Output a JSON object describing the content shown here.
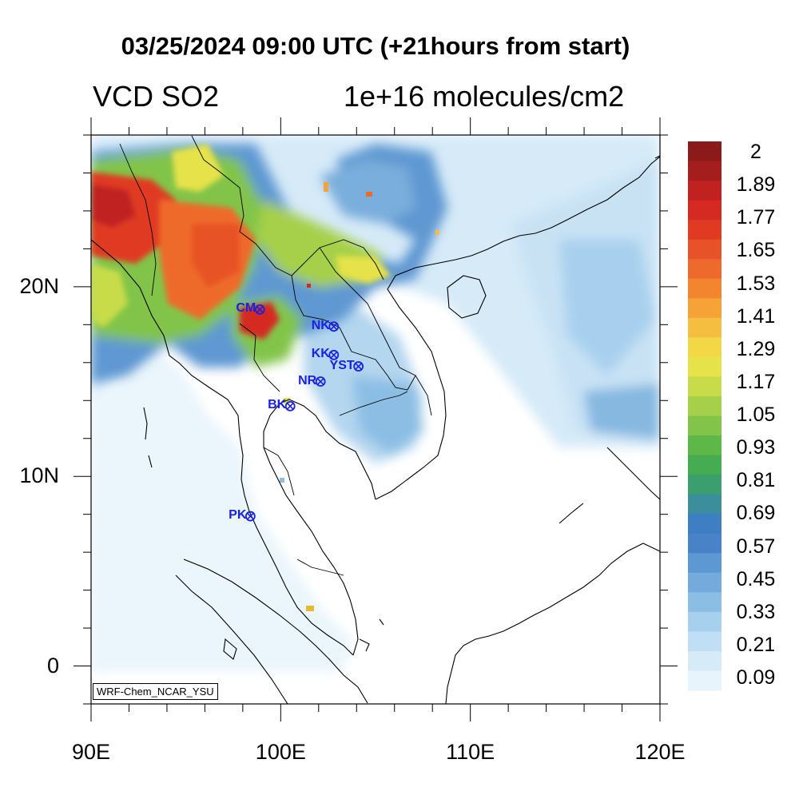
{
  "title": "03/25/2024 09:00 UTC (+21hours from start)",
  "variable": "VCD SO2",
  "units": "1e+16 molecules/cm2",
  "credit": "WRF-Chem_NCAR_YSU",
  "lon_ticks": [
    {
      "lon": 90,
      "label": "90E"
    },
    {
      "lon": 100,
      "label": "100E"
    },
    {
      "lon": 110,
      "label": "110E"
    },
    {
      "lon": 120,
      "label": "120E"
    }
  ],
  "lat_ticks": [
    {
      "lat": 20,
      "label": "20N"
    },
    {
      "lat": 10,
      "label": "10N"
    },
    {
      "lat": 0,
      "label": "0"
    }
  ],
  "colorbar": {
    "labels": [
      "2",
      "1.89",
      "1.77",
      "1.65",
      "1.53",
      "1.41",
      "1.29",
      "1.17",
      "1.05",
      "0.93",
      "0.81",
      "0.69",
      "0.57",
      "0.45",
      "0.33",
      "0.21",
      "0.09"
    ],
    "colors": [
      "#8b1a1a",
      "#a51e1e",
      "#c02222",
      "#d42a22",
      "#e03a22",
      "#e85228",
      "#ee6a2c",
      "#f2852e",
      "#f5a236",
      "#f6be40",
      "#f3d846",
      "#e6e24a",
      "#c8dc4a",
      "#a6d04a",
      "#82c44a",
      "#5eb848",
      "#46ac52",
      "#3a9e6e",
      "#3c8e9c",
      "#3e7ec2",
      "#4a82c8",
      "#5e98d2",
      "#74aadc",
      "#8cbee4",
      "#a6d0ee",
      "#c0def4",
      "#d6eaf8",
      "#e8f4fc"
    ]
  },
  "stations": [
    {
      "code": "CM",
      "lon": 98.9,
      "lat": 18.8
    },
    {
      "code": "NK",
      "lon": 102.8,
      "lat": 17.9
    },
    {
      "code": "KK",
      "lon": 102.8,
      "lat": 16.4
    },
    {
      "code": "YST",
      "lon": 104.1,
      "lat": 15.8
    },
    {
      "code": "NR",
      "lon": 102.1,
      "lat": 15.0
    },
    {
      "code": "BK",
      "lon": 100.5,
      "lat": 13.7
    },
    {
      "code": "PK",
      "lon": 98.4,
      "lat": 7.9
    }
  ]
}
